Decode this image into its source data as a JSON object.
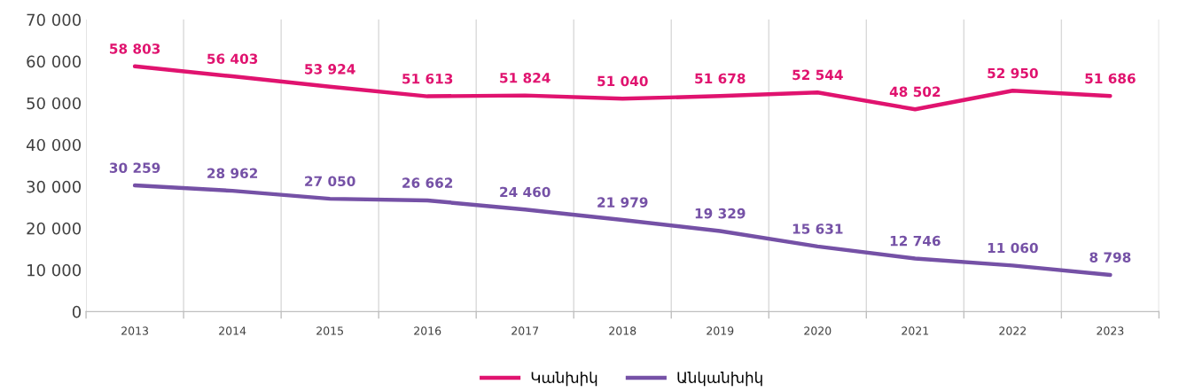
{
  "chart_data": {
    "type": "line",
    "categories": [
      "2013",
      "2014",
      "2015",
      "2016",
      "2017",
      "2018",
      "2019",
      "2020",
      "2021",
      "2022",
      "2023"
    ],
    "series": [
      {
        "name": "Կանխիկ",
        "color": "#e0136f",
        "values": [
          58803,
          56403,
          53924,
          51613,
          51824,
          51040,
          51678,
          52544,
          48502,
          52950,
          51686
        ],
        "value_labels": [
          "58 803",
          "56 403",
          "53 924",
          "51 613",
          "51 824",
          "51 040",
          "51 678",
          "52 544",
          "48 502",
          "52 950",
          "51 686"
        ]
      },
      {
        "name": "Անկանխիկ",
        "color": "#7551a6",
        "values": [
          30259,
          28962,
          27050,
          26662,
          24460,
          21979,
          19329,
          15631,
          12746,
          11060,
          8798
        ],
        "value_labels": [
          "30 259",
          "28 962",
          "27 050",
          "26 662",
          "24 460",
          "21 979",
          "19 329",
          "15 631",
          "12 746",
          "11 060",
          "8 798"
        ]
      }
    ],
    "ylim": [
      0,
      70000
    ],
    "yticks": [
      {
        "value": 0,
        "label": "0"
      },
      {
        "value": 10000,
        "label": "10 000"
      },
      {
        "value": 20000,
        "label": "20 000"
      },
      {
        "value": 30000,
        "label": "30 000"
      },
      {
        "value": 40000,
        "label": "40 000"
      },
      {
        "value": 50000,
        "label": "50 000"
      },
      {
        "value": 60000,
        "label": "60 000"
      },
      {
        "value": 70000,
        "label": "70 000"
      }
    ],
    "grid": "x",
    "legend": "bottom",
    "marker": "none",
    "line_style": "solid"
  }
}
